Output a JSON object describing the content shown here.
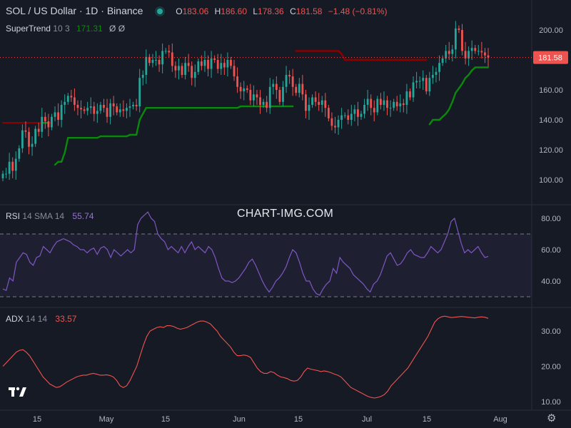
{
  "header": {
    "symbol_title": "SOL / US Dollar · 1D · Binance",
    "open_key": "O",
    "open": "183.06",
    "high_key": "H",
    "high": "186.60",
    "low_key": "L",
    "low": "178.36",
    "close_key": "C",
    "close": "181.58",
    "change": "−1.48 (−0.81%)"
  },
  "supertrend": {
    "name": "SuperTrend",
    "params": "10 3",
    "value": "171.31",
    "icons": "Ø Ø"
  },
  "rsi": {
    "name": "RSI",
    "params": "14 SMA 14",
    "value": "55.74"
  },
  "adx": {
    "name": "ADX",
    "params": "14 14",
    "value": "33.57"
  },
  "watermark": "CHART-IMG.COM",
  "price_label": "181.58",
  "colors": {
    "up": "#26a69a",
    "down": "#ef5350",
    "st_up": "#0a8a0a",
    "st_down": "#8b0000",
    "rsi": "#7e57c2",
    "adx": "#ef5350",
    "bg": "#161a25"
  },
  "chart_data": [
    {
      "type": "candlestick",
      "title": "SOL / US Dollar · 1D · Binance",
      "x_tick_labels": [
        "15",
        "May",
        "15",
        "Jun",
        "15",
        "Jul",
        "15",
        "Aug"
      ],
      "y_ticks": [
        100,
        120,
        140,
        160,
        180,
        200
      ],
      "ylim": [
        88,
        212
      ],
      "grid": false,
      "last_price": 181.58,
      "series": [
        {
          "name": "SOL",
          "close": [
            104,
            104,
            112,
            106,
            114,
            121,
            133,
            132,
            122,
            124,
            134,
            132,
            142,
            139,
            135,
            142,
            145,
            140,
            150,
            152,
            156,
            155,
            150,
            148,
            147,
            146,
            148,
            149,
            144,
            146,
            150,
            148,
            142,
            151,
            149,
            145,
            147,
            146,
            148,
            149,
            150,
            149,
            168,
            170,
            182,
            178,
            180,
            180,
            177,
            186,
            186,
            185,
            176,
            173,
            176,
            170,
            178,
            176,
            168,
            172,
            179,
            176,
            180,
            174,
            181,
            180,
            174,
            178,
            175,
            180,
            176,
            169,
            162,
            159,
            161,
            160,
            153,
            157,
            155,
            150,
            152,
            148,
            162,
            164,
            160,
            152,
            162,
            170,
            169,
            162,
            158,
            164,
            157,
            146,
            150,
            155,
            152,
            150,
            153,
            148,
            141,
            136,
            135,
            140,
            143,
            143,
            140,
            144,
            147,
            142,
            144,
            150,
            154,
            148,
            145,
            154,
            150,
            153,
            148,
            148,
            152,
            149,
            151,
            150,
            159,
            155,
            165,
            166,
            166,
            168,
            159,
            168,
            170,
            172,
            178,
            181,
            186,
            184,
            187,
            201,
            200,
            186,
            181,
            186,
            188,
            186,
            186,
            185,
            183,
            181.58
          ]
        },
        {
          "name": "SuperTrend",
          "values": [
            138,
            138,
            138,
            138,
            138,
            138,
            138,
            138,
            138,
            138,
            138,
            138,
            138,
            138,
            138,
            138,
            110,
            112,
            112,
            118,
            128,
            128,
            128,
            128,
            128,
            128,
            128,
            128,
            128,
            128,
            129,
            129,
            129,
            129,
            129,
            129,
            129,
            129,
            129,
            130,
            130,
            130,
            140,
            144,
            148,
            148,
            148,
            148,
            148,
            148,
            148,
            148,
            148,
            148,
            148,
            148,
            148,
            148,
            148,
            148,
            148,
            148,
            148,
            148,
            148,
            148,
            148,
            148,
            148,
            148,
            148,
            148,
            148,
            149,
            149,
            149,
            149,
            149,
            149,
            149,
            149,
            149,
            149,
            149,
            149,
            149,
            149,
            149,
            149,
            149,
            186,
            186,
            186,
            186,
            186,
            186,
            186,
            186,
            186,
            186,
            186,
            186,
            186,
            186,
            184,
            180,
            180,
            180,
            180,
            180,
            180,
            180,
            180,
            180,
            180,
            180,
            180,
            180,
            180,
            180,
            180,
            180,
            180,
            180,
            180,
            180,
            180,
            180,
            180,
            180,
            180,
            137,
            140,
            140,
            140,
            142,
            144,
            147,
            152,
            158,
            161,
            164,
            168,
            170,
            173,
            175,
            175,
            175,
            175,
            175,
            175,
            175,
            175,
            171.31
          ]
        }
      ]
    },
    {
      "type": "line",
      "title": "RSI",
      "y_ticks": [
        40,
        60,
        80
      ],
      "ylim": [
        30,
        86
      ],
      "bands": [
        30,
        70
      ],
      "series": [
        {
          "name": "RSI",
          "values": [
            35,
            34,
            42,
            40,
            52,
            55,
            58,
            57,
            52,
            50,
            55,
            56,
            62,
            60,
            58,
            62,
            65,
            66,
            67,
            66,
            65,
            63,
            62,
            60,
            60,
            58,
            60,
            61,
            57,
            61,
            62,
            60,
            55,
            60,
            58,
            56,
            58,
            60,
            58,
            60,
            76,
            80,
            82,
            84,
            80,
            78,
            70,
            67,
            65,
            60,
            62,
            60,
            58,
            62,
            58,
            62,
            65,
            60,
            62,
            60,
            58,
            62,
            60,
            55,
            48,
            42,
            40,
            40,
            39,
            40,
            42,
            45,
            48,
            52,
            54,
            50,
            45,
            40,
            36,
            33,
            36,
            40,
            42,
            45,
            49,
            55,
            60,
            58,
            52,
            45,
            40,
            40,
            35,
            32,
            31,
            35,
            38,
            40,
            48,
            45,
            55,
            52,
            50,
            48,
            44,
            42,
            40,
            38,
            35,
            33,
            38,
            40,
            44,
            50,
            56,
            58,
            54,
            50,
            51,
            54,
            58,
            60,
            57,
            56,
            55,
            55,
            58,
            62,
            60,
            58,
            60,
            65,
            70,
            78,
            80,
            72,
            64,
            58,
            60,
            58,
            60,
            62,
            58,
            55,
            55.74
          ]
        }
      ]
    },
    {
      "type": "line",
      "title": "ADX",
      "y_ticks": [
        10,
        20,
        30
      ],
      "ylim": [
        7,
        37
      ],
      "series": [
        {
          "name": "ADX",
          "values": [
            20,
            21,
            22,
            23,
            24,
            24.5,
            24.7,
            24,
            23,
            21.5,
            20,
            18.5,
            17,
            16,
            15,
            14.5,
            14,
            14.2,
            14.8,
            15.5,
            16,
            16.5,
            17,
            17.3,
            17.5,
            17.5,
            17.8,
            18,
            17.8,
            17.5,
            17.5,
            17.6,
            17.4,
            17,
            16,
            14.5,
            14,
            14.5,
            16,
            18,
            20,
            23,
            26,
            28.5,
            30,
            30.5,
            31,
            31.2,
            31,
            31.5,
            31.5,
            31.3,
            30.8,
            30.5,
            30.7,
            31,
            31.5,
            32,
            32.5,
            32.8,
            32.8,
            32.5,
            32,
            31,
            30,
            28.5,
            27.5,
            26.5,
            25.5,
            24,
            23,
            23,
            23.2,
            23,
            22.5,
            21,
            19.5,
            18.5,
            18,
            18,
            18.5,
            18.2,
            17.5,
            17,
            16.8,
            16.5,
            16,
            15.8,
            16,
            17,
            18.5,
            19.5,
            19.2,
            19,
            18.8,
            18.5,
            18.7,
            18.5,
            18.2,
            17.8,
            17.5,
            17,
            16,
            15,
            14,
            13.5,
            13,
            12.5,
            12,
            11.5,
            11.2,
            11,
            11.2,
            11.5,
            12,
            13,
            14.5,
            15.5,
            16.5,
            17.5,
            18.5,
            19.5,
            21,
            22.5,
            24,
            25.5,
            27,
            28.5,
            30.5,
            32.5,
            33.5,
            34,
            34.2,
            34,
            33.8,
            33.9,
            34,
            34.1,
            34,
            33.9,
            33.8,
            33.7,
            33.9,
            34,
            33.9,
            33.57
          ]
        }
      ]
    }
  ]
}
